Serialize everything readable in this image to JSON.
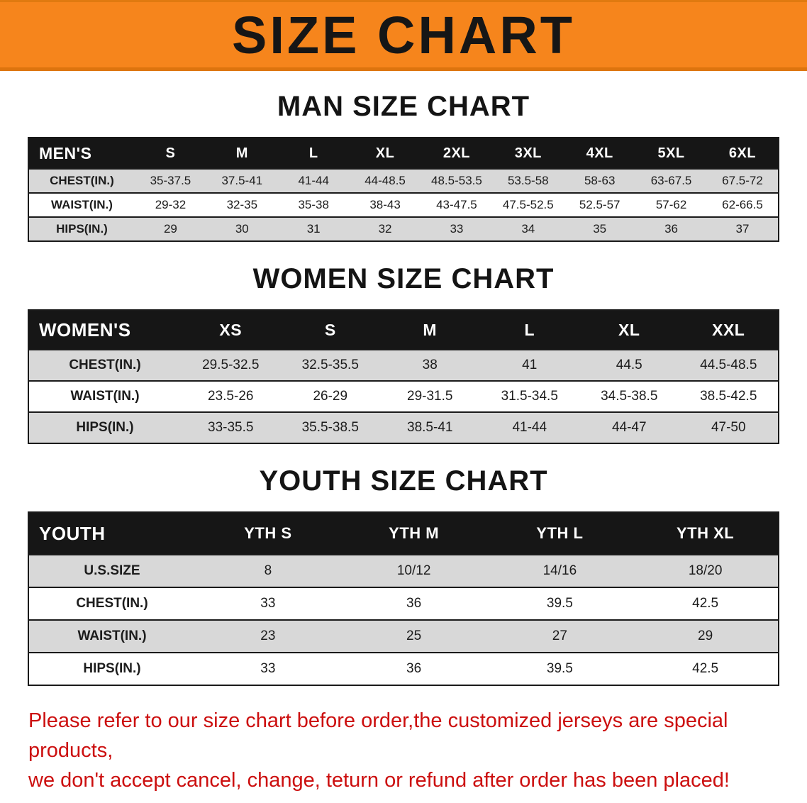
{
  "banner": {
    "title": "SIZE CHART"
  },
  "colors": {
    "banner_bg": "#f6851c",
    "header_row_bg": "#161616",
    "alt_row_bg": "#d8d8d8",
    "footer_text": "#cc0f0f"
  },
  "sections": [
    {
      "heading": "MAN SIZE CHART",
      "table": {
        "header": [
          "MEN'S",
          "S",
          "M",
          "L",
          "XL",
          "2XL",
          "3XL",
          "4XL",
          "5XL",
          "6XL"
        ],
        "rows": [
          [
            "CHEST(IN.)",
            "35-37.5",
            "37.5-41",
            "41-44",
            "44-48.5",
            "48.5-53.5",
            "53.5-58",
            "58-63",
            "63-67.5",
            "67.5-72"
          ],
          [
            "WAIST(IN.)",
            "29-32",
            "32-35",
            "35-38",
            "38-43",
            "43-47.5",
            "47.5-52.5",
            "52.5-57",
            "57-62",
            "62-66.5"
          ],
          [
            "HIPS(IN.)",
            "29",
            "30",
            "31",
            "32",
            "33",
            "34",
            "35",
            "36",
            "37"
          ]
        ]
      }
    },
    {
      "heading": "WOMEN SIZE CHART",
      "table": {
        "header": [
          "WOMEN'S",
          "XS",
          "S",
          "M",
          "L",
          "XL",
          "XXL"
        ],
        "rows": [
          [
            "CHEST(IN.)",
            "29.5-32.5",
            "32.5-35.5",
            "38",
            "41",
            "44.5",
            "44.5-48.5"
          ],
          [
            "WAIST(IN.)",
            "23.5-26",
            "26-29",
            "29-31.5",
            "31.5-34.5",
            "34.5-38.5",
            "38.5-42.5"
          ],
          [
            "HIPS(IN.)",
            "33-35.5",
            "35.5-38.5",
            "38.5-41",
            "41-44",
            "44-47",
            "47-50"
          ]
        ]
      }
    },
    {
      "heading": "YOUTH SIZE CHART",
      "table": {
        "header": [
          "YOUTH",
          "YTH S",
          "YTH M",
          "YTH L",
          "YTH XL"
        ],
        "rows": [
          [
            "U.S.SIZE",
            "8",
            "10/12",
            "14/16",
            "18/20"
          ],
          [
            "CHEST(IN.)",
            "33",
            "36",
            "39.5",
            "42.5"
          ],
          [
            "WAIST(IN.)",
            "23",
            "25",
            "27",
            "29"
          ],
          [
            "HIPS(IN.)",
            "33",
            "36",
            "39.5",
            "42.5"
          ]
        ]
      }
    }
  ],
  "footer": {
    "line1": "Please refer to our size chart before order,the customized jerseys are special products,",
    "line2": "we don't accept cancel, change, teturn or refund after order has been placed!"
  }
}
